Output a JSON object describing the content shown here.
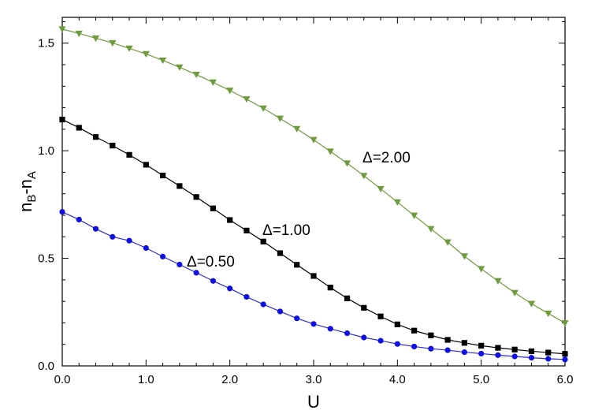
{
  "chart_data": {
    "type": "line",
    "xlabel": "U",
    "ylabel": {
      "n": "n",
      "b": "B",
      "dash": "-",
      "n2": "n",
      "a": "A"
    },
    "xlim": [
      0,
      6.0
    ],
    "ylim": [
      0,
      1.62
    ],
    "xticks": [
      "0.0",
      "1.0",
      "2.0",
      "3.0",
      "4.0",
      "5.0",
      "6.0"
    ],
    "xtick_values": [
      0,
      1,
      2,
      3,
      4,
      5,
      6
    ],
    "yticks": [
      "0.0",
      "0.5",
      "1.0",
      "1.5"
    ],
    "ytick_values": [
      0,
      0.5,
      1.0,
      1.5
    ],
    "grid": false,
    "x": [
      0.0,
      0.2,
      0.4,
      0.6,
      0.8,
      1.0,
      1.2,
      1.4,
      1.6,
      1.8,
      2.0,
      2.2,
      2.4,
      2.6,
      2.8,
      3.0,
      3.2,
      3.4,
      3.6,
      3.8,
      4.0,
      4.2,
      4.4,
      4.6,
      4.8,
      5.0,
      5.2,
      5.4,
      5.6,
      5.8,
      6.0
    ],
    "series": [
      {
        "label": "Δ=0.50",
        "marker": "circle",
        "color": "#1010e0",
        "line_color": "#2a2ad8",
        "values": [
          0.716,
          0.68,
          0.637,
          0.6,
          0.582,
          0.548,
          0.508,
          0.471,
          0.433,
          0.395,
          0.36,
          0.321,
          0.286,
          0.253,
          0.221,
          0.195,
          0.173,
          0.152,
          0.132,
          0.117,
          0.102,
          0.09,
          0.08,
          0.073,
          0.064,
          0.057,
          0.05,
          0.044,
          0.038,
          0.033,
          0.03
        ]
      },
      {
        "label": "Δ=1.00",
        "marker": "square",
        "color": "#000000",
        "line_color": "#000000",
        "values": [
          1.145,
          1.107,
          1.064,
          1.024,
          0.981,
          0.935,
          0.885,
          0.836,
          0.785,
          0.732,
          0.678,
          0.629,
          0.578,
          0.524,
          0.47,
          0.418,
          0.364,
          0.314,
          0.27,
          0.23,
          0.193,
          0.164,
          0.142,
          0.121,
          0.107,
          0.094,
          0.084,
          0.076,
          0.068,
          0.062,
          0.056
        ]
      },
      {
        "label": "Δ=2.00",
        "marker": "triangle-down",
        "color": "#6e9b3e",
        "line_color": "#6e9b3e",
        "values": [
          1.565,
          1.545,
          1.523,
          1.501,
          1.476,
          1.45,
          1.42,
          1.388,
          1.354,
          1.318,
          1.28,
          1.24,
          1.197,
          1.15,
          1.102,
          1.051,
          0.997,
          0.942,
          0.884,
          0.823,
          0.761,
          0.699,
          0.637,
          0.575,
          0.51,
          0.451,
          0.395,
          0.34,
          0.289,
          0.244,
          0.199
        ]
      }
    ],
    "annotations": [
      {
        "text": "Δ=0.50",
        "series": 0
      },
      {
        "text": "Δ=1.00",
        "series": 1
      },
      {
        "text": "Δ=2.00",
        "series": 2
      }
    ]
  }
}
